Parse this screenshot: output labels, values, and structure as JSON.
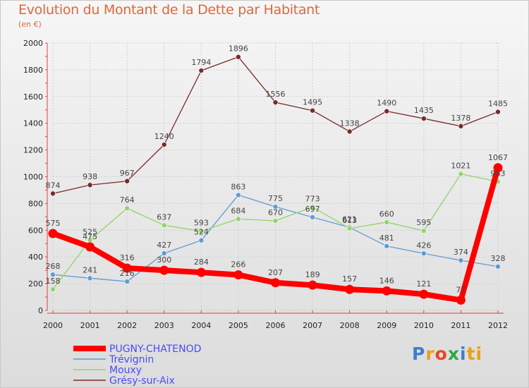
{
  "chart_data": {
    "type": "line",
    "title": "Evolution du Montant de la Dette par Habitant",
    "subtitle": "(en €)",
    "x": [
      "2000",
      "2001",
      "2002",
      "2003",
      "2004",
      "2005",
      "2006",
      "2007",
      "2008",
      "2009",
      "2010",
      "2011",
      "2012"
    ],
    "ylim": [
      0,
      2000
    ],
    "yticks": [
      0,
      200,
      400,
      600,
      800,
      1000,
      1200,
      1400,
      1600,
      1800,
      2000
    ],
    "grid": true,
    "legend_position": "bottom-left",
    "series": [
      {
        "name": "Grésy-sur-Aix",
        "color": "#7a2a2a",
        "values": [
          874,
          938,
          967,
          1240,
          1794,
          1896,
          1556,
          1495,
          1338,
          1490,
          1435,
          1378,
          1485
        ]
      },
      {
        "name": "Trévignin",
        "color": "#5f9bd4",
        "values": [
          268,
          241,
          216,
          427,
          524,
          863,
          775,
          697,
          621,
          481,
          426,
          374,
          328
        ]
      },
      {
        "name": "Mouxy",
        "color": "#8fd46a",
        "values": [
          158,
          525,
          764,
          637,
          593,
          684,
          670,
          773,
          613,
          660,
          595,
          1021,
          963
        ]
      },
      {
        "name": "PUGNY-CHATENOD",
        "color": "#ff0000",
        "values": [
          575,
          475,
          316,
          300,
          284,
          266,
          207,
          189,
          157,
          146,
          121,
          77,
          1067
        ]
      }
    ]
  },
  "legend": {
    "items": [
      {
        "label": "PUGNY-CHATENOD",
        "color": "#ff0000",
        "text_color": "#4a4aff"
      },
      {
        "label": "Trévignin",
        "color": "#5f9bd4",
        "text_color": "#4a4aff"
      },
      {
        "label": "Mouxy",
        "color": "#8fd46a",
        "text_color": "#4a4aff"
      },
      {
        "label": "Grésy-sur-Aix",
        "color": "#7a2a2a",
        "text_color": "#4a4aff"
      }
    ]
  },
  "logo": {
    "letters": [
      "P",
      "r",
      "o",
      "x",
      "i",
      "ti"
    ]
  }
}
